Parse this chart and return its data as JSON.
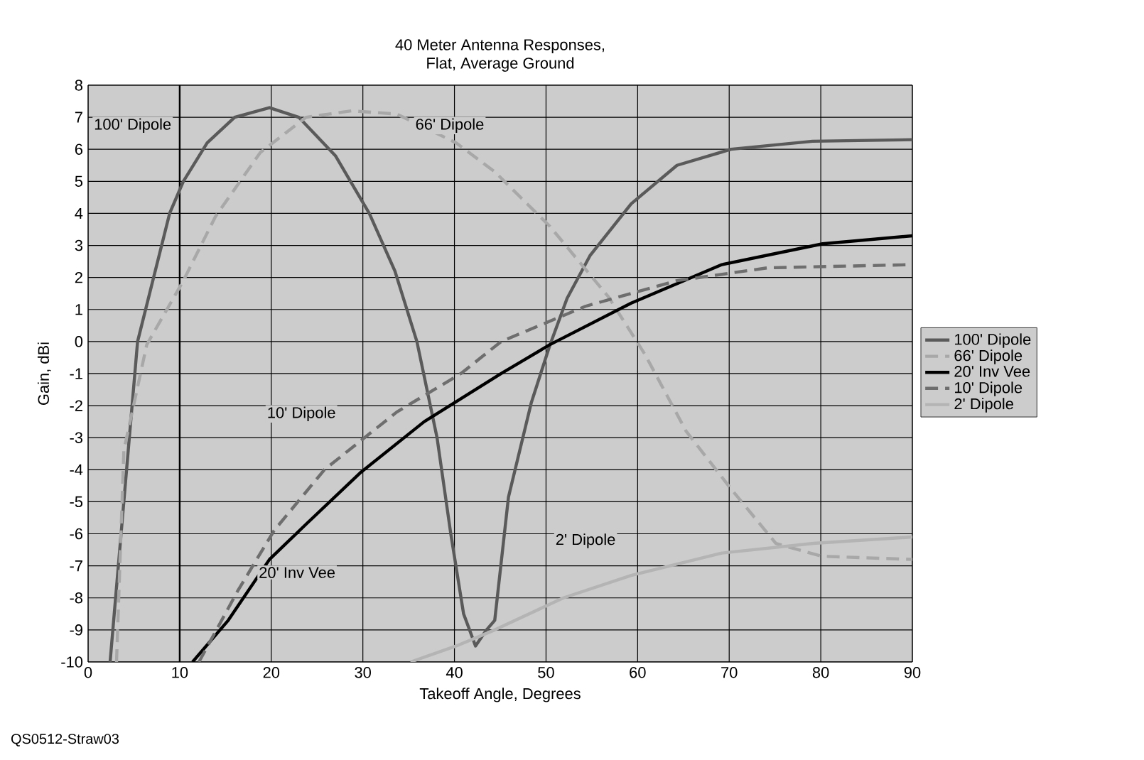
{
  "chart_data": {
    "type": "line",
    "title": "40 Meter Antenna Responses,",
    "subtitle": "Flat, Average Ground",
    "xlabel": "Takeoff Angle, Degrees",
    "ylabel": "Gain, dBi",
    "xlim": [
      0,
      90
    ],
    "ylim": [
      -10,
      8
    ],
    "xticks": [
      0,
      10,
      20,
      30,
      40,
      50,
      60,
      70,
      80,
      90
    ],
    "yticks": [
      -10,
      -9,
      -8,
      -7,
      -6,
      -5,
      -4,
      -3,
      -2,
      -1,
      0,
      1,
      2,
      3,
      4,
      5,
      6,
      7,
      8
    ],
    "grid": true,
    "legend": "right",
    "marker": "none",
    "ref_lines": [
      {
        "axis": "x",
        "value": 10,
        "color": "#000000"
      }
    ],
    "series": [
      {
        "name": "100' Dipole",
        "color": "#5a5a5a",
        "line_style": "solid",
        "x": [
          2.4,
          5.4,
          8.9,
          10.4,
          13,
          16,
          19.8,
          23,
          27,
          30.7,
          33.5,
          35.9,
          38.1,
          39.6,
          41,
          42.3,
          43.5,
          44.4,
          45.9,
          48.4,
          50.4,
          52.3,
          54.8,
          59.3,
          64.3,
          70.2,
          79.1,
          90
        ],
        "values": [
          -10,
          0,
          4,
          5,
          6.2,
          7,
          7.3,
          7,
          5.8,
          4,
          2.2,
          0,
          -3,
          -6,
          -8.5,
          -9.5,
          -9,
          -8.7,
          -4.85,
          -1.9,
          -0.13,
          1.35,
          2.68,
          4.3,
          5.5,
          6,
          6.25,
          6.3
        ]
      },
      {
        "name": "66' Dipole",
        "color": "#a8a8a8",
        "line_style": "dashed",
        "x": [
          3.1,
          3.9,
          6.4,
          10.4,
          13.9,
          18.8,
          23.8,
          28.8,
          33.7,
          40.2,
          44.4,
          50.4,
          56.8,
          60.8,
          65.3,
          70.2,
          75.1,
          80.1,
          90
        ],
        "values": [
          -10,
          -3.4,
          -0.1,
          1.9,
          3.9,
          5.9,
          7,
          7.2,
          7.1,
          6.2,
          5.3,
          3.6,
          1.4,
          -0.4,
          -2.8,
          -4.6,
          -6.3,
          -6.7,
          -6.8
        ]
      },
      {
        "name": "20' Inv Vee",
        "color": "#000000",
        "line_style": "solid",
        "x": [
          11.4,
          15.3,
          19.8,
          23.8,
          29.7,
          36.7,
          45.1,
          50.4,
          59.3,
          69.2,
          80.2,
          90
        ],
        "values": [
          -10,
          -8.7,
          -6.8,
          -5.7,
          -4.1,
          -2.5,
          -1,
          -0.1,
          1.2,
          2.4,
          3.05,
          3.3
        ]
      },
      {
        "name": "10' Dipole",
        "color": "#6e6e6e",
        "line_style": "dashed",
        "x": [
          12.1,
          16.3,
          20.3,
          25.8,
          33.7,
          40.7,
          45.1,
          54.3,
          64.3,
          74.2,
          90
        ],
        "values": [
          -10,
          -7.8,
          -5.9,
          -4,
          -2.2,
          -1,
          0,
          1.1,
          1.9,
          2.3,
          2.4
        ]
      },
      {
        "name": "2' Dipole",
        "color": "#b4b4b4",
        "line_style": "solid",
        "x": [
          35.2,
          40.2,
          44.4,
          51.9,
          59.3,
          69.2,
          79.2,
          90
        ],
        "values": [
          -10,
          -9.5,
          -9,
          -8,
          -7.3,
          -6.6,
          -6.3,
          -6.1
        ]
      }
    ],
    "annotations": [
      "100' Dipole",
      "66' Dipole",
      "10' Dipole",
      "20' Inv Vee",
      "2' Dipole",
      "QS0512-Straw03"
    ]
  }
}
